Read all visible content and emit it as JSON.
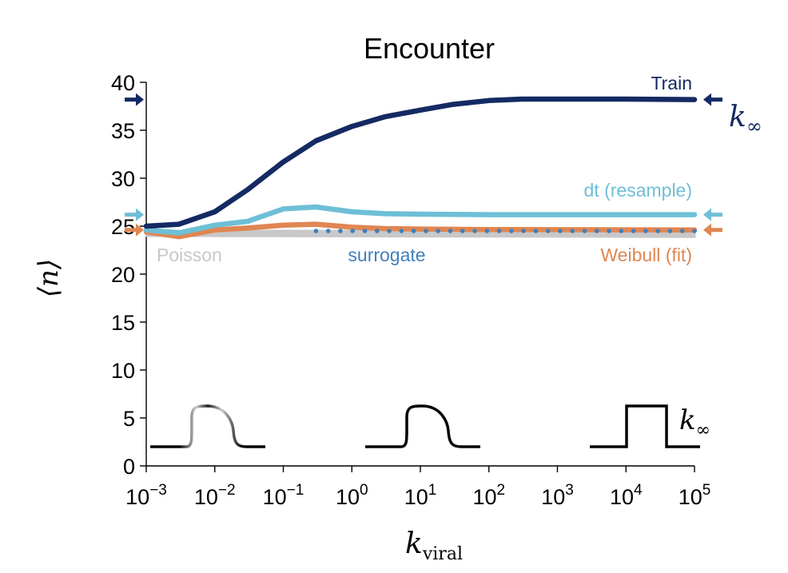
{
  "chart_data": {
    "type": "line",
    "title": "Encounter",
    "ylabel": "⟨n⟩",
    "xlabel": {
      "base": "k",
      "sub": "viral"
    },
    "x_scale": "log",
    "xlim": [
      0.001,
      100000
    ],
    "ylim": [
      0,
      40
    ],
    "y_ticks": [
      0,
      5,
      10,
      15,
      20,
      25,
      30,
      35,
      40
    ],
    "x_ticks": [
      {
        "value": 0.001,
        "base": "10",
        "exp": "−3"
      },
      {
        "value": 0.01,
        "base": "10",
        "exp": "−2"
      },
      {
        "value": 0.1,
        "base": "10",
        "exp": "−1"
      },
      {
        "value": 1,
        "base": "10",
        "exp": "0"
      },
      {
        "value": 10,
        "base": "10",
        "exp": "1"
      },
      {
        "value": 100,
        "base": "10",
        "exp": "2"
      },
      {
        "value": 1000,
        "base": "10",
        "exp": "3"
      },
      {
        "value": 10000,
        "base": "10",
        "exp": "4"
      },
      {
        "value": 100000,
        "base": "10",
        "exp": "5"
      }
    ],
    "series": [
      {
        "name": "Poisson",
        "color": "#c8c8c8",
        "style": "filled-band",
        "x": [
          0.001,
          0.003,
          0.01,
          0.03,
          0.1,
          0.3,
          1,
          100000
        ],
        "y": [
          24.6,
          24.5,
          24.5,
          24.5,
          24.5,
          24.5,
          24.5,
          24.5
        ]
      },
      {
        "name": "Train",
        "color": "#142a63",
        "style": "solid",
        "x": [
          0.001,
          0.003,
          0.01,
          0.03,
          0.1,
          0.3,
          1,
          3,
          10,
          30,
          100,
          300,
          1000,
          10000,
          100000
        ],
        "y": [
          25.0,
          25.2,
          26.5,
          28.8,
          31.7,
          33.9,
          35.4,
          36.4,
          37.1,
          37.7,
          38.1,
          38.25,
          38.25,
          38.25,
          38.2
        ]
      },
      {
        "name": "dt (resample)",
        "color": "#6ebfd6",
        "style": "solid",
        "x": [
          0.001,
          0.003,
          0.01,
          0.03,
          0.1,
          0.3,
          1,
          3,
          10,
          100,
          100000
        ],
        "y": [
          24.6,
          24.3,
          25.1,
          25.5,
          26.8,
          27.0,
          26.5,
          26.3,
          26.25,
          26.2,
          26.2
        ]
      },
      {
        "name": "Weibull (fit)",
        "color": "#e08652",
        "style": "solid",
        "x": [
          0.001,
          0.003,
          0.01,
          0.03,
          0.1,
          0.3,
          1,
          3,
          10,
          100,
          100000
        ],
        "y": [
          24.4,
          23.9,
          24.6,
          24.8,
          25.1,
          25.2,
          24.9,
          24.75,
          24.7,
          24.65,
          24.6
        ]
      },
      {
        "name": "surrogate",
        "color": "#3f7fba",
        "style": "dotted",
        "x_range": [
          0.3,
          100000
        ],
        "n_points": 32,
        "y": 24.5
      }
    ],
    "asymptote_marker": {
      "label_base": "k",
      "label_sub": "∞",
      "series": [
        "Train",
        "dt (resample)",
        "Weibull (fit)"
      ]
    },
    "kernel_insets": [
      {
        "shape": "smooth",
        "style": "gradient",
        "color": "#000000"
      },
      {
        "shape": "smooth",
        "style": "solid",
        "color": "#000000"
      },
      {
        "shape": "box",
        "style": "solid",
        "color": "#000000",
        "label_base": "k",
        "label_sub": "∞"
      }
    ],
    "grid": false,
    "legend": "inline-labels"
  }
}
